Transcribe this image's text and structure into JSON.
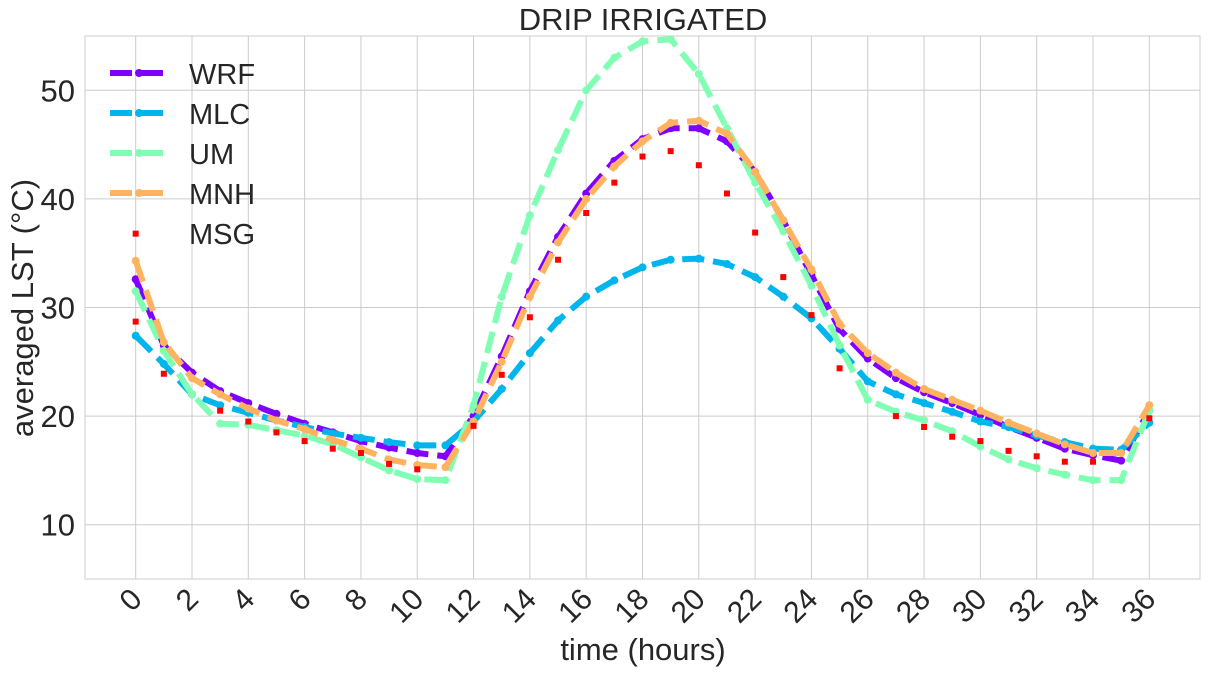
{
  "chart_data": {
    "type": "line",
    "title": "DRIP IRRIGATED",
    "xlabel": "time (hours)",
    "ylabel": "averaged LST (°C)",
    "xlim": [
      -1.8,
      37.8
    ],
    "ylim": [
      5,
      55
    ],
    "xticks": [
      0,
      2,
      4,
      6,
      8,
      10,
      12,
      14,
      16,
      18,
      20,
      22,
      24,
      26,
      28,
      30,
      32,
      34,
      36
    ],
    "yticks": [
      10,
      20,
      30,
      40,
      50
    ],
    "grid": true,
    "legend_position": "top-left",
    "x": [
      0,
      1,
      2,
      3,
      4,
      5,
      6,
      7,
      8,
      9,
      10,
      11,
      12,
      13,
      14,
      15,
      16,
      17,
      18,
      19,
      20,
      21,
      22,
      23,
      24,
      25,
      26,
      27,
      28,
      29,
      30,
      31,
      32,
      33,
      34,
      35,
      36
    ],
    "series": [
      {
        "name": "WRF",
        "color": "#8000ff",
        "style": "dashed-marker",
        "values": [
          32.6,
          26.5,
          24.0,
          22.3,
          21.2,
          20.2,
          19.3,
          18.5,
          17.7,
          17.1,
          16.6,
          16.3,
          20.0,
          25.5,
          31.5,
          36.5,
          40.5,
          43.5,
          45.5,
          46.5,
          46.5,
          45.3,
          42.5,
          38.0,
          33.0,
          28.0,
          25.3,
          23.5,
          22.2,
          21.2,
          20.1,
          19.0,
          18.0,
          17.0,
          16.4,
          15.9,
          20.5
        ]
      },
      {
        "name": "MLC",
        "color": "#00b5eb",
        "style": "dashed-marker",
        "values": [
          27.4,
          24.8,
          22.0,
          21.0,
          20.3,
          19.6,
          19.0,
          18.4,
          18.0,
          17.6,
          17.3,
          17.3,
          19.5,
          22.5,
          25.8,
          28.8,
          31.0,
          32.5,
          33.7,
          34.4,
          34.5,
          34.0,
          32.8,
          31.0,
          29.0,
          26.2,
          23.2,
          22.0,
          21.2,
          20.4,
          19.5,
          19.0,
          18.2,
          17.6,
          17.0,
          16.9,
          19.4
        ]
      },
      {
        "name": "UM",
        "color": "#80ffb4",
        "style": "dashed-marker",
        "values": [
          31.5,
          26.0,
          22.0,
          19.3,
          19.2,
          18.7,
          18.2,
          17.4,
          16.2,
          15.0,
          14.2,
          14.1,
          21.0,
          31.0,
          38.5,
          44.5,
          50.0,
          53.0,
          54.5,
          54.7,
          51.5,
          46.5,
          41.5,
          37.0,
          32.0,
          26.5,
          21.5,
          20.4,
          19.6,
          18.6,
          17.2,
          16.0,
          15.2,
          14.6,
          14.1,
          14.1,
          20.5
        ]
      },
      {
        "name": "MNH",
        "color": "#ffb360",
        "style": "dashed-marker",
        "values": [
          34.3,
          26.8,
          23.5,
          22.0,
          20.7,
          19.6,
          18.8,
          17.8,
          17.0,
          16.0,
          15.5,
          15.3,
          19.5,
          25.0,
          31.0,
          36.0,
          40.0,
          43.0,
          45.3,
          47.0,
          47.2,
          46.0,
          42.5,
          38.0,
          33.5,
          28.5,
          25.8,
          24.0,
          22.5,
          21.5,
          20.5,
          19.4,
          18.4,
          17.4,
          16.6,
          16.6,
          21.0
        ]
      },
      {
        "name": "MSG",
        "color": "#ff0000",
        "style": "square-points",
        "points": [
          [
            0,
            36.8
          ],
          [
            0,
            28.7
          ],
          [
            1,
            23.9
          ],
          [
            3,
            20.5
          ],
          [
            4,
            19.5
          ],
          [
            5,
            18.5
          ],
          [
            6,
            17.7
          ],
          [
            7,
            17.0
          ],
          [
            8,
            16.6
          ],
          [
            9,
            15.6
          ],
          [
            10,
            15.1
          ],
          [
            12,
            19.1
          ],
          [
            13,
            23.8
          ],
          [
            14,
            29.1
          ],
          [
            15,
            34.4
          ],
          [
            16,
            38.7
          ],
          [
            17,
            41.5
          ],
          [
            18,
            43.9
          ],
          [
            19,
            44.4
          ],
          [
            20,
            43.1
          ],
          [
            21,
            40.5
          ],
          [
            22,
            36.9
          ],
          [
            23,
            32.8
          ],
          [
            24,
            29.3
          ],
          [
            25,
            24.4
          ],
          [
            27,
            20.0
          ],
          [
            28,
            19.0
          ],
          [
            29,
            18.1
          ],
          [
            30,
            17.7
          ],
          [
            31,
            16.8
          ],
          [
            32,
            16.3
          ],
          [
            33,
            15.8
          ],
          [
            34,
            15.8
          ],
          [
            36,
            19.8
          ]
        ]
      }
    ]
  }
}
